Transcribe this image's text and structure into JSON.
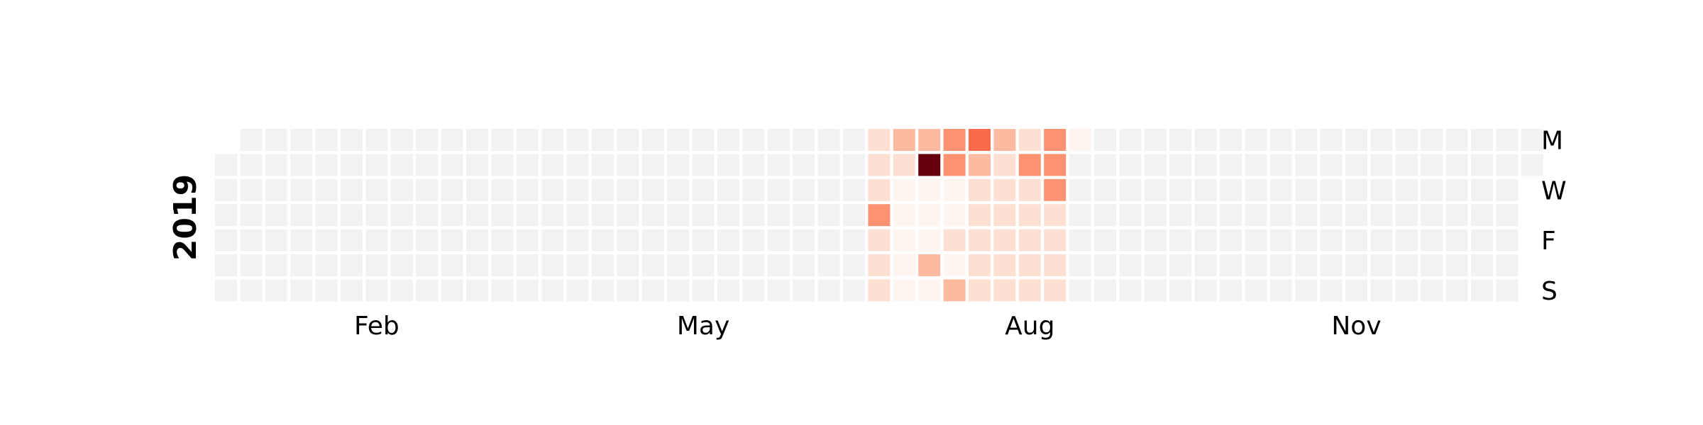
{
  "chart_data": {
    "type": "heatmap",
    "year": "2019",
    "start_date": "2019-01-01",
    "end_date": "2019-12-31",
    "colors": {
      "empty": "#f2f2f2",
      "scale": [
        "#fff5f0",
        "#fee0d2",
        "#fcbba1",
        "#fc9272",
        "#fb6a4a",
        "#ef3b2c",
        "#cb181d",
        "#a50f15",
        "#67000d"
      ]
    },
    "grid": false,
    "x_tick_labels": [
      "Feb",
      "May",
      "Aug",
      "Nov"
    ],
    "y_tick_labels": [
      "M",
      "W",
      "F",
      "S"
    ],
    "values_by_date": {
      "2019-07-01": 0.08,
      "2019-07-02": 0.08,
      "2019-07-03": 0.08,
      "2019-07-04": 0.4,
      "2019-07-05": 0.08,
      "2019-07-06": 0.08,
      "2019-07-07": 0.08,
      "2019-07-08": 0.3,
      "2019-07-09": 0.15,
      "2019-07-10": 0.06,
      "2019-07-11": 0.06,
      "2019-07-12": 0.06,
      "2019-07-13": 0.06,
      "2019-07-14": 0.06,
      "2019-07-15": 0.3,
      "2019-07-16": 1.0,
      "2019-07-17": 0.06,
      "2019-07-18": 0.06,
      "2019-07-19": 0.06,
      "2019-07-20": 0.3,
      "2019-07-21": 0.06,
      "2019-07-22": 0.4,
      "2019-07-23": 0.35,
      "2019-07-24": 0.06,
      "2019-07-25": 0.06,
      "2019-07-26": 0.08,
      "2019-07-27": 0.06,
      "2019-07-28": 0.3,
      "2019-07-29": 0.5,
      "2019-07-30": 0.25,
      "2019-07-31": 0.08,
      "2019-08-01": 0.08,
      "2019-08-02": 0.08,
      "2019-08-03": 0.08,
      "2019-08-04": 0.08,
      "2019-08-05": 0.25,
      "2019-08-06": 0.12,
      "2019-08-07": 0.08,
      "2019-08-08": 0.08,
      "2019-08-09": 0.08,
      "2019-08-10": 0.08,
      "2019-08-11": 0.08,
      "2019-08-12": 0.12,
      "2019-08-13": 0.35,
      "2019-08-14": 0.08,
      "2019-08-15": 0.08,
      "2019-08-16": 0.08,
      "2019-08-17": 0.08,
      "2019-08-18": 0.08,
      "2019-08-19": 0.35,
      "2019-08-20": 0.35,
      "2019-08-21": 0.35,
      "2019-08-22": 0.08,
      "2019-08-23": 0.08,
      "2019-08-24": 0.08,
      "2019-08-25": 0.08,
      "2019-08-26": 0.06
    }
  }
}
